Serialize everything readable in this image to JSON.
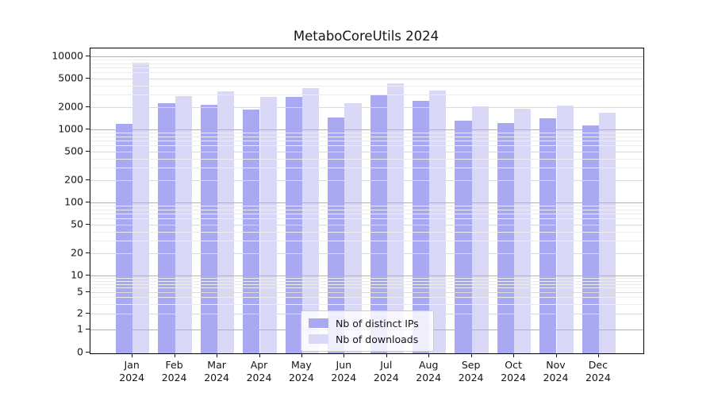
{
  "title": "MetaboCoreUtils 2024",
  "legend": {
    "items": [
      {
        "label": "Nb of distinct IPs",
        "color": "#a9a9f2"
      },
      {
        "label": "Nb of downloads",
        "color": "#d9d9f7"
      }
    ]
  },
  "chart_data": {
    "type": "bar",
    "title": "MetaboCoreUtils 2024",
    "categories": [
      "Jan",
      "Feb",
      "Mar",
      "Apr",
      "May",
      "Jun",
      "Jul",
      "Aug",
      "Sep",
      "Oct",
      "Nov",
      "Dec"
    ],
    "xtick_year": "2024",
    "series": [
      {
        "name": "Nb of distinct IPs",
        "color": "#a9a9f2",
        "values": [
          1200,
          2300,
          2170,
          1880,
          2800,
          1470,
          2950,
          2440,
          1320,
          1210,
          1430,
          1130
        ]
      },
      {
        "name": "Nb of downloads",
        "color": "#d9d9f7",
        "values": [
          8200,
          2900,
          3300,
          2790,
          3700,
          2300,
          4300,
          3400,
          2080,
          1930,
          2120,
          1680
        ]
      }
    ],
    "yscale": "symlog",
    "ylim": [
      0,
      12000
    ],
    "yticks": [
      10000,
      5000,
      2000,
      1000,
      500,
      200,
      100,
      50,
      20,
      10,
      5,
      2,
      1,
      0
    ],
    "grid": true,
    "legend_position": "lower center"
  }
}
